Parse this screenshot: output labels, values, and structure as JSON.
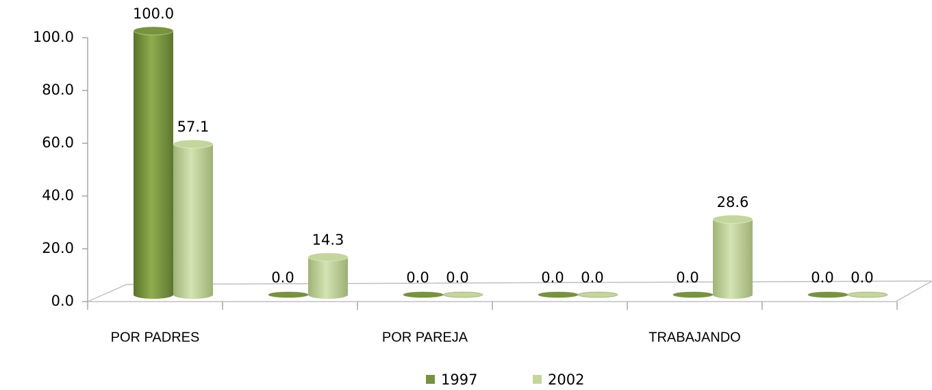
{
  "chart_data": {
    "type": "bar3d",
    "categories": [
      "POR PADRES",
      null,
      "POR PAREJA",
      null,
      "TRABAJANDO",
      null
    ],
    "series": [
      {
        "name": "1997",
        "color": "#77933c",
        "values": [
          100.0,
          0.0,
          0.0,
          0.0,
          0.0,
          0.0
        ],
        "value_labels": [
          "100.0",
          "0.0",
          "0.0",
          "0.0",
          "0.0",
          "0.0"
        ]
      },
      {
        "name": "2002",
        "color": "#c3d69b",
        "values": [
          57.1,
          14.3,
          0.0,
          0.0,
          28.6,
          0.0
        ],
        "value_labels": [
          "57.1",
          "14.3",
          "0.0",
          "0.0",
          "28.6",
          "0.0"
        ]
      }
    ],
    "ylim": [
      0,
      100
    ],
    "yticks": [
      {
        "value": 0,
        "label": "0.0"
      },
      {
        "value": 20,
        "label": "20.0"
      },
      {
        "value": 40,
        "label": "40.0"
      },
      {
        "value": 60,
        "label": "60.0"
      },
      {
        "value": 80,
        "label": "80.0"
      },
      {
        "value": 100,
        "label": "100.0"
      }
    ],
    "grid": false,
    "legend": "bottom"
  }
}
